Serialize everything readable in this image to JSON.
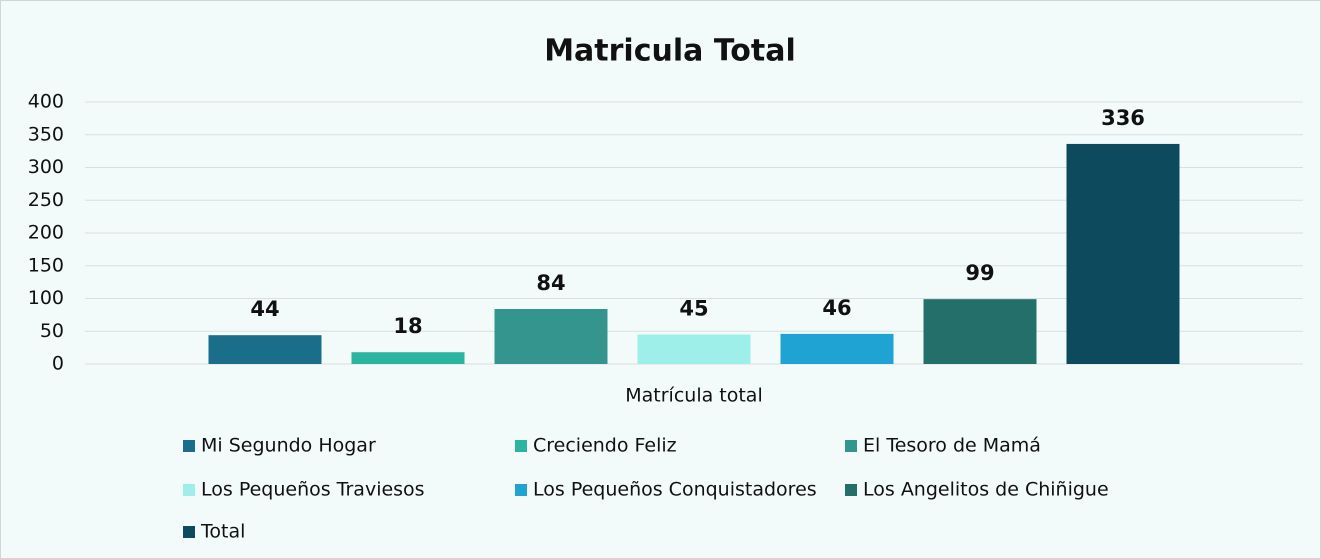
{
  "chart_data": {
    "type": "bar",
    "title": "Matricula Total",
    "categories": [
      "Matrícula total"
    ],
    "series": [
      {
        "name": "Mi Segundo Hogar",
        "color": "#1a6e8a",
        "values": [
          44
        ]
      },
      {
        "name": "Creciendo Feliz",
        "color": "#2bb5a0",
        "values": [
          18
        ]
      },
      {
        "name": "El Tesoro de Mamá",
        "color": "#34958f",
        "values": [
          84
        ]
      },
      {
        "name": "Los Pequeños Traviesos",
        "color": "#9eefe9",
        "values": [
          45
        ]
      },
      {
        "name": "Los Pequeños Conquistadores",
        "color": "#1fa3d2",
        "values": [
          46
        ]
      },
      {
        "name": "Los Angelitos de Chiñigue",
        "color": "#256f6b",
        "values": [
          99
        ]
      },
      {
        "name": "Total",
        "color": "#0d4a5d",
        "values": [
          336
        ]
      }
    ],
    "ylim": [
      0,
      400
    ],
    "yticks": [
      0,
      50,
      100,
      150,
      200,
      250,
      300,
      350,
      400
    ],
    "grid": true,
    "legend": "bottom"
  }
}
